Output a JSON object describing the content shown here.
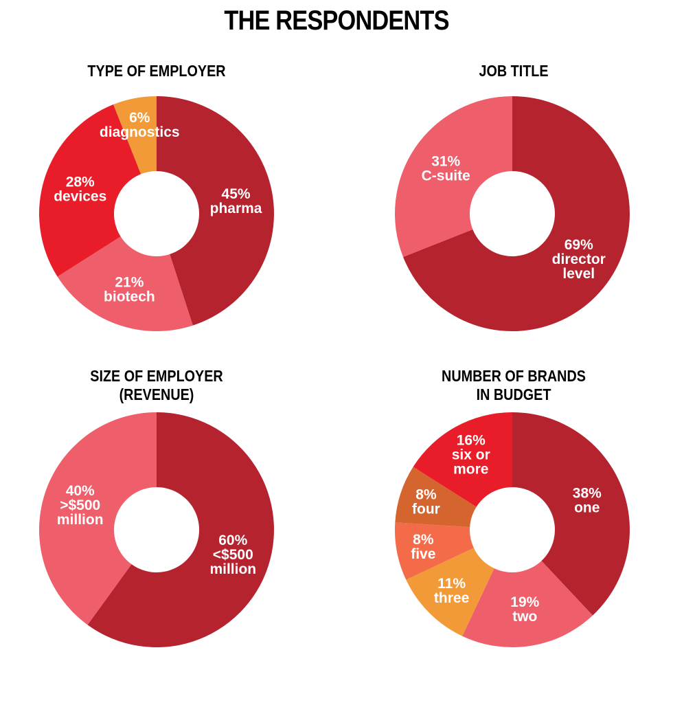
{
  "title": "THE RESPONDENTS",
  "colors": {
    "dark_red": "#B5232F",
    "red": "#E91D2A",
    "pink": "#EE5F6B",
    "orange": "#F39A38",
    "light_orange": "#F36B48",
    "brown_orange": "#D5652E"
  },
  "chart_data": [
    {
      "type": "pie",
      "title": "TYPE OF EMPLOYER",
      "slices": [
        {
          "name": "pharma",
          "value": 45,
          "label": [
            "45%",
            "pharma"
          ],
          "color": "#B5232F"
        },
        {
          "name": "biotech",
          "value": 21,
          "label": [
            "21%",
            "biotech"
          ],
          "color": "#EE5F6B"
        },
        {
          "name": "devices",
          "value": 28,
          "label": [
            "28%",
            "devices"
          ],
          "color": "#E91D2A"
        },
        {
          "name": "diagnostics",
          "value": 6,
          "label": [
            "6%",
            "diagnostics"
          ],
          "color": "#F39A38"
        }
      ]
    },
    {
      "type": "pie",
      "title": "JOB TITLE",
      "slices": [
        {
          "name": "director level",
          "value": 69,
          "label": [
            "69%",
            "director",
            "level"
          ],
          "color": "#B5232F"
        },
        {
          "name": "C-suite",
          "value": 31,
          "label": [
            "31%",
            "C-suite"
          ],
          "color": "#EE5F6B"
        }
      ]
    },
    {
      "type": "pie",
      "title": "SIZE OF EMPLOYER (REVENUE)",
      "title_lines": [
        "SIZE OF EMPLOYER",
        "(REVENUE)"
      ],
      "slices": [
        {
          "name": "<$500 million",
          "value": 60,
          "label": [
            "60%",
            "<$500",
            "million"
          ],
          "color": "#B5232F"
        },
        {
          "name": ">$500 million",
          "value": 40,
          "label": [
            "40%",
            ">$500",
            "million"
          ],
          "color": "#EE5F6B"
        }
      ]
    },
    {
      "type": "pie",
      "title": "NUMBER OF BRANDS IN BUDGET",
      "title_lines": [
        "NUMBER OF BRANDS",
        "IN BUDGET"
      ],
      "slices": [
        {
          "name": "one",
          "value": 38,
          "label": [
            "38%",
            "one"
          ],
          "color": "#B5232F"
        },
        {
          "name": "two",
          "value": 19,
          "label": [
            "19%",
            "two"
          ],
          "color": "#EE5F6B"
        },
        {
          "name": "three",
          "value": 11,
          "label": [
            "11%",
            "three"
          ],
          "color": "#F39A38"
        },
        {
          "name": "five",
          "value": 8,
          "label": [
            "8%",
            "five"
          ],
          "color": "#F36B48"
        },
        {
          "name": "four",
          "value": 8,
          "label": [
            "8%",
            "four"
          ],
          "color": "#D5652E"
        },
        {
          "name": "six or more",
          "value": 16,
          "label": [
            "16%",
            "six or",
            "more"
          ],
          "color": "#E91D2A"
        }
      ]
    }
  ]
}
